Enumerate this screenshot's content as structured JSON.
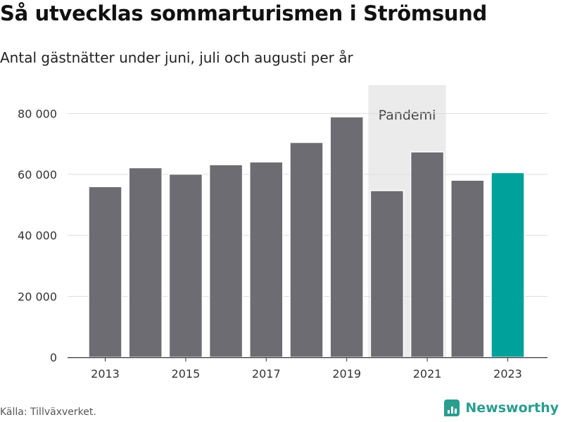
{
  "chart_data": {
    "type": "bar",
    "title": "Så utvecklas sommarturismen i Strömsund",
    "subtitle": "Antal gästnätter under juni, juli och augusti per år",
    "categories": [
      "2013",
      "2014",
      "2015",
      "2016",
      "2017",
      "2018",
      "2019",
      "2020",
      "2021",
      "2022",
      "2023"
    ],
    "values": [
      56000,
      62200,
      60100,
      63200,
      64100,
      70500,
      78900,
      54700,
      67400,
      58100,
      60600
    ],
    "x_tick_labels": [
      "2013",
      "2015",
      "2017",
      "2019",
      "2021",
      "2023"
    ],
    "y_ticks": [
      0,
      20000,
      40000,
      60000,
      80000
    ],
    "y_tick_labels": [
      "0",
      "20 000",
      "40 000",
      "60 000",
      "80 000"
    ],
    "ylim": [
      0,
      90000
    ],
    "grid": true,
    "highlight_category": "2023",
    "annotations": [
      {
        "label": "Pandemi",
        "from": "2020",
        "to": "2021"
      }
    ],
    "colors": {
      "bar": "#6d6c72",
      "highlight": "#00a19a",
      "band": "#ebebeb",
      "grid": "#dddddd",
      "axis": "#333333"
    }
  },
  "footer": {
    "source": "Källa: Tillväxverket.",
    "brand": "Newsworthy",
    "brand_color": "#2a9d8f",
    "brand_icon": "bar-chart-icon"
  }
}
